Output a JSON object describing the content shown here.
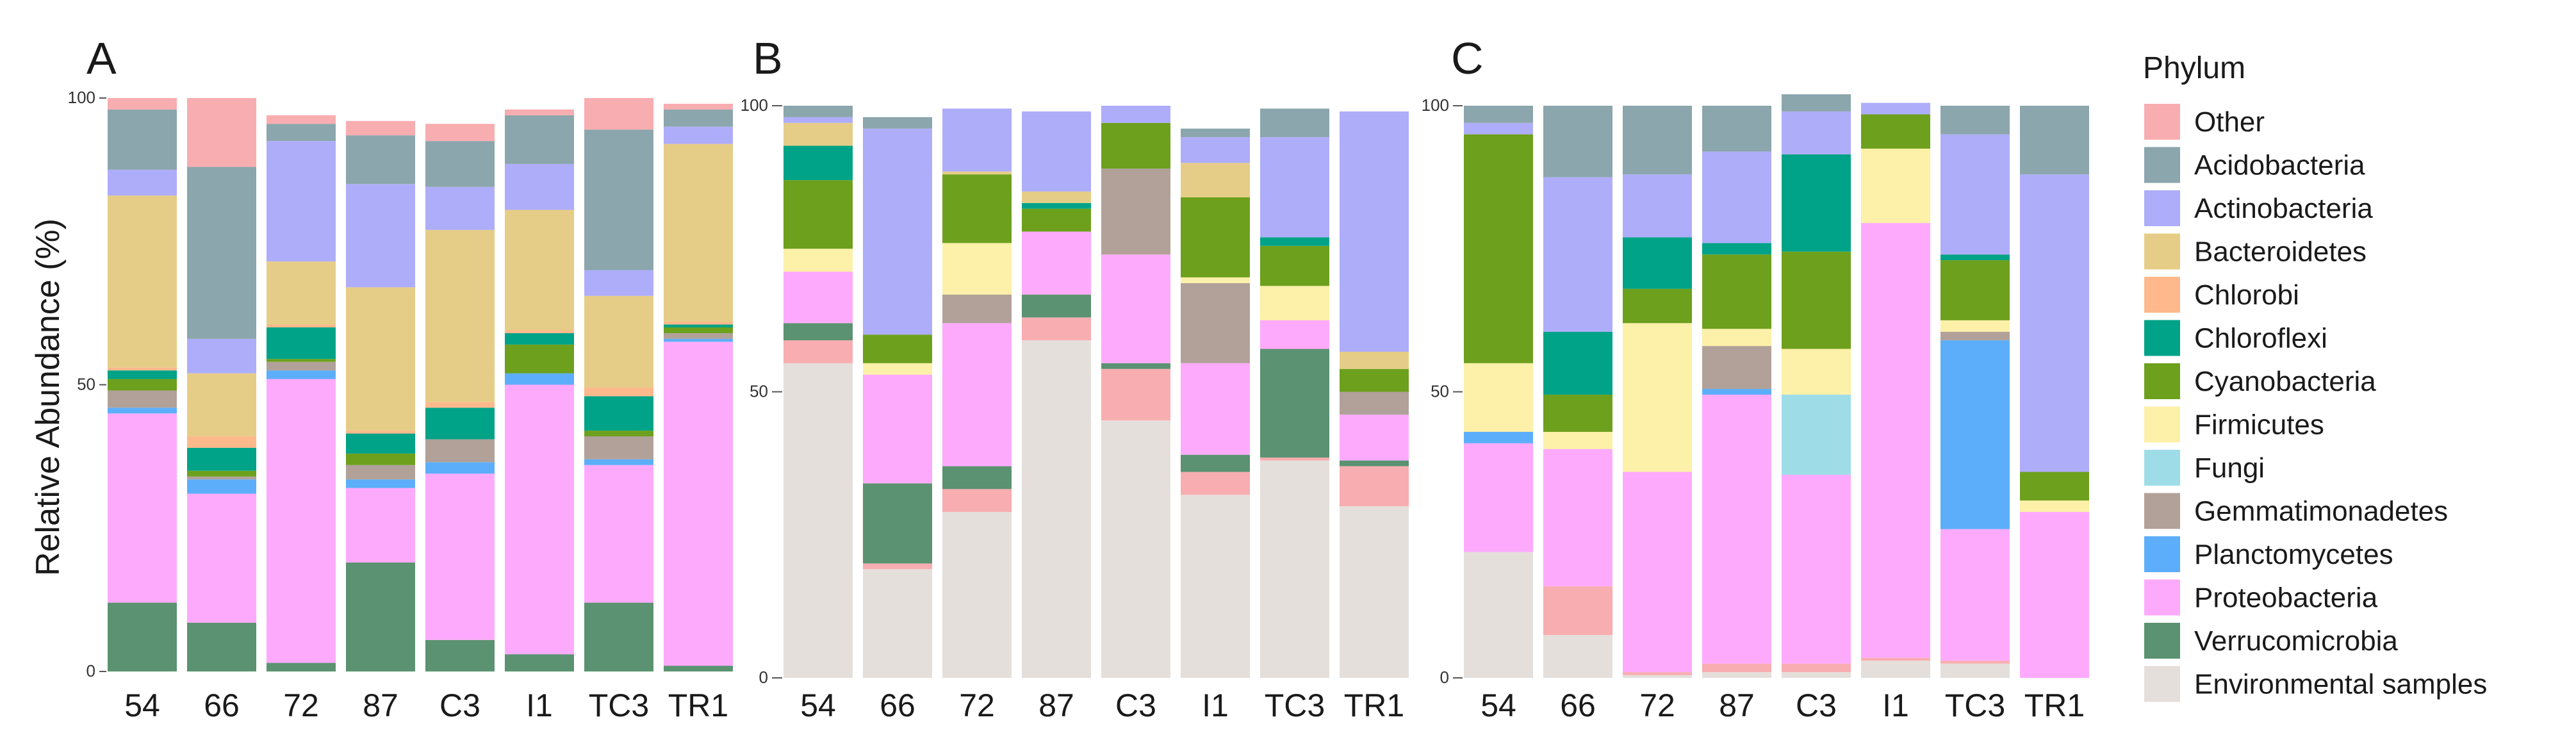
{
  "chart_data": [
    {
      "type": "bar",
      "stacked": true,
      "panel_label": "A",
      "ylabel": "Relative Abundance (%)",
      "ylim": [
        0,
        100
      ],
      "yticks": [
        "0",
        "50",
        "100"
      ],
      "categories": [
        "54",
        "66",
        "72",
        "87",
        "C3",
        "I1",
        "TC3",
        "TR1"
      ],
      "series": [
        {
          "name": "Verrucomicrobia",
          "values": [
            12,
            8.5,
            1.5,
            19,
            5.5,
            3,
            12,
            1
          ]
        },
        {
          "name": "Proteobacteria",
          "values": [
            33,
            22.5,
            49.5,
            13,
            29,
            47,
            24,
            56.5
          ]
        },
        {
          "name": "Planctomycetes",
          "values": [
            1,
            2.5,
            1.5,
            1.5,
            2,
            2,
            1,
            0.5
          ]
        },
        {
          "name": "Gemmatimonadetes",
          "values": [
            3,
            0.5,
            1.5,
            2.5,
            4,
            0,
            4,
            1
          ]
        },
        {
          "name": "Cyanobacteria",
          "values": [
            2,
            1,
            0.5,
            2,
            0,
            5,
            1,
            1
          ]
        },
        {
          "name": "Chloroflexi",
          "values": [
            1.5,
            4,
            5.5,
            3.5,
            5.5,
            2,
            6,
            0.5
          ]
        },
        {
          "name": "Chlorobi",
          "values": [
            0.5,
            2,
            0.5,
            0.5,
            1,
            0.5,
            1.5,
            0.5
          ]
        },
        {
          "name": "Bacteroidetes",
          "values": [
            30,
            11,
            11,
            25,
            30,
            21,
            16,
            31
          ]
        },
        {
          "name": "Actinobacteria",
          "values": [
            4.5,
            6,
            21,
            18,
            7.5,
            8,
            4.5,
            3
          ]
        },
        {
          "name": "Acidobacteria",
          "values": [
            10.5,
            30,
            3,
            8.5,
            8,
            8.5,
            24.5,
            3
          ]
        },
        {
          "name": "Other",
          "values": [
            2,
            12,
            1.5,
            2.5,
            3,
            1,
            5.5,
            1
          ]
        }
      ]
    },
    {
      "type": "bar",
      "stacked": true,
      "panel_label": "B",
      "ylim": [
        0,
        100
      ],
      "yticks": [
        "0",
        "50",
        "100"
      ],
      "categories": [
        "54",
        "66",
        "72",
        "87",
        "C3",
        "I1",
        "TC3",
        "TR1"
      ],
      "series": [
        {
          "name": "Environmental samples",
          "values": [
            55,
            19,
            29,
            59,
            45,
            32,
            38,
            30
          ]
        },
        {
          "name": "Other",
          "values": [
            4,
            1,
            4,
            4,
            9,
            4,
            0.5,
            7
          ]
        },
        {
          "name": "Verrucomicrobia",
          "values": [
            3,
            14,
            4,
            4,
            1,
            3,
            19,
            1
          ]
        },
        {
          "name": "Proteobacteria",
          "values": [
            9,
            19,
            25,
            11,
            19,
            16,
            5,
            8
          ]
        },
        {
          "name": "Planctomycetes",
          "values": [
            0,
            0,
            0,
            0,
            0,
            0,
            0,
            0
          ]
        },
        {
          "name": "Gemmatimonadetes",
          "values": [
            0,
            0,
            5,
            0,
            15,
            14,
            0,
            4
          ]
        },
        {
          "name": "Firmicutes",
          "values": [
            4,
            2,
            9,
            0,
            0,
            1,
            6,
            0
          ]
        },
        {
          "name": "Cyanobacteria",
          "values": [
            12,
            5,
            12,
            4,
            8,
            14,
            7,
            4
          ]
        },
        {
          "name": "Chloroflexi",
          "values": [
            6,
            0,
            0,
            1,
            0,
            0,
            1.5,
            0
          ]
        },
        {
          "name": "Bacteroidetes",
          "values": [
            4,
            0,
            0.5,
            2,
            0,
            6,
            0,
            3
          ]
        },
        {
          "name": "Actinobacteria",
          "values": [
            1,
            36,
            11,
            14,
            3,
            4.5,
            17.5,
            42
          ]
        },
        {
          "name": "Acidobacteria",
          "values": [
            2,
            2,
            0,
            0,
            0,
            1.5,
            5,
            0
          ]
        }
      ]
    },
    {
      "type": "bar",
      "stacked": true,
      "panel_label": "C",
      "ylim": [
        0,
        100
      ],
      "yticks": [
        "0",
        "50",
        "100"
      ],
      "categories": [
        "54",
        "66",
        "72",
        "87",
        "C3",
        "I1",
        "TC3",
        "TR1"
      ],
      "series": [
        {
          "name": "Environmental samples",
          "values": [
            22,
            7.5,
            0.5,
            1,
            1,
            3,
            2.5,
            0
          ]
        },
        {
          "name": "Other",
          "values": [
            0,
            8.5,
            0.5,
            1.5,
            1.5,
            0.5,
            0.5,
            0
          ]
        },
        {
          "name": "Proteobacteria",
          "values": [
            19,
            24,
            35,
            47,
            33,
            76,
            23,
            29
          ]
        },
        {
          "name": "Planctomycetes",
          "values": [
            2,
            0,
            0,
            1,
            0,
            0,
            33,
            0
          ]
        },
        {
          "name": "Fungi",
          "values": [
            0,
            0,
            0,
            0,
            14,
            0,
            0,
            0
          ]
        },
        {
          "name": "Gemmatimonadetes",
          "values": [
            0,
            0,
            0,
            7.5,
            0,
            0,
            1.5,
            0
          ]
        },
        {
          "name": "Firmicutes",
          "values": [
            12,
            3,
            26,
            3,
            8,
            13,
            2,
            2
          ]
        },
        {
          "name": "Cyanobacteria",
          "values": [
            40,
            6.5,
            6,
            13,
            17,
            6,
            10.5,
            5
          ]
        },
        {
          "name": "Chloroflexi",
          "values": [
            0,
            11,
            9,
            2,
            17,
            0,
            1,
            0
          ]
        },
        {
          "name": "Actinobacteria",
          "values": [
            2,
            27,
            11,
            16,
            7.5,
            2,
            21,
            52
          ]
        },
        {
          "name": "Acidobacteria",
          "values": [
            3,
            12.5,
            12,
            8,
            3,
            0,
            5,
            12
          ]
        }
      ]
    }
  ],
  "legend": {
    "title": "Phylum",
    "items": [
      {
        "name": "Other",
        "color": "#f8adb0"
      },
      {
        "name": "Acidobacteria",
        "color": "#8ba6ac"
      },
      {
        "name": "Actinobacteria",
        "color": "#aeadfa"
      },
      {
        "name": "Bacteroidetes",
        "color": "#e6cd87"
      },
      {
        "name": "Chlorobi",
        "color": "#fdb98b"
      },
      {
        "name": "Chloroflexi",
        "color": "#00a387"
      },
      {
        "name": "Cyanobacteria",
        "color": "#6da01d"
      },
      {
        "name": "Firmicutes",
        "color": "#fdf0a8"
      },
      {
        "name": "Fungi",
        "color": "#9edde8"
      },
      {
        "name": "Gemmatimonadetes",
        "color": "#b1a199"
      },
      {
        "name": "Planctomycetes",
        "color": "#5caefa"
      },
      {
        "name": "Proteobacteria",
        "color": "#fdaafd"
      },
      {
        "name": "Verrucomicrobia",
        "color": "#5b9271"
      },
      {
        "name": "Environmental samples",
        "color": "#e5dfdb"
      }
    ]
  }
}
